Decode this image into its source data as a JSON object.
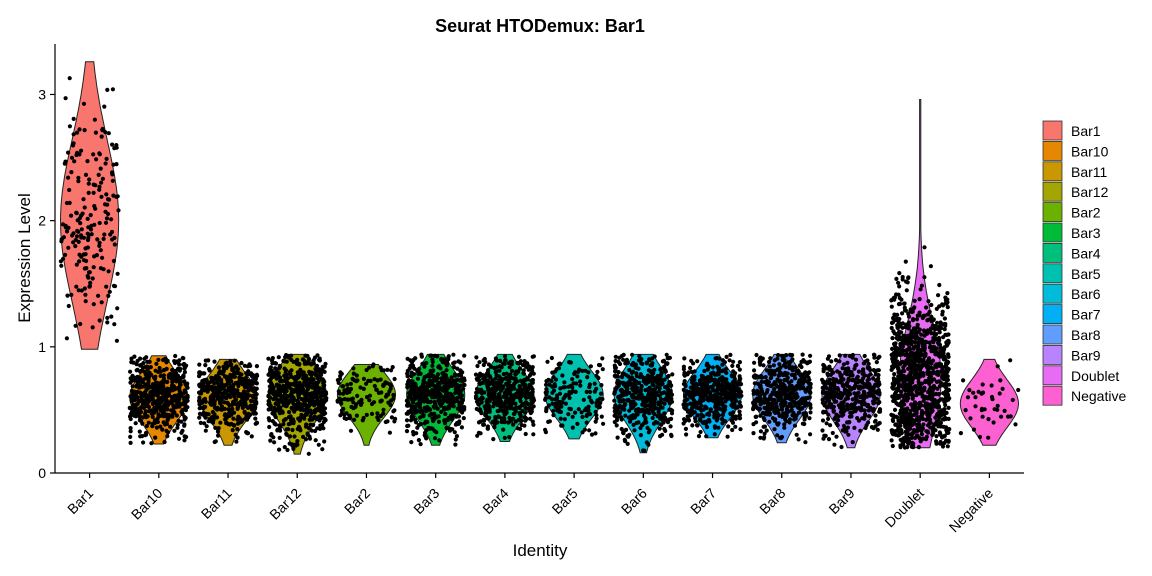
{
  "chart_data": {
    "type": "violin",
    "title": "Seurat HTODemux: Bar1",
    "xlabel": "Identity",
    "ylabel": "Expression Level",
    "ylim": [
      0,
      3.4
    ],
    "y_ticks": [
      0,
      1,
      2,
      3
    ],
    "legend_placement": "right",
    "grid": false,
    "categories": [
      "Bar1",
      "Bar10",
      "Bar11",
      "Bar12",
      "Bar2",
      "Bar3",
      "Bar4",
      "Bar5",
      "Bar6",
      "Bar7",
      "Bar8",
      "Bar9",
      "Doublet",
      "Negative"
    ],
    "colors": [
      "#F8766D",
      "#E58700",
      "#C99800",
      "#A3A500",
      "#6BB100",
      "#00BA38",
      "#00BF7D",
      "#00C0AF",
      "#00BCD8",
      "#00B0F6",
      "#619CFF",
      "#B983FF",
      "#E76BF3",
      "#FD61D1"
    ],
    "series": [
      {
        "name": "Bar1",
        "min": 0.98,
        "max": 3.26,
        "median": 1.95,
        "peak": 2.0,
        "n_points": 200
      },
      {
        "name": "Bar10",
        "min": 0.23,
        "max": 0.93,
        "median": 0.6,
        "peak": 0.6,
        "n_points": 500
      },
      {
        "name": "Bar11",
        "min": 0.22,
        "max": 0.9,
        "median": 0.6,
        "peak": 0.6,
        "n_points": 450
      },
      {
        "name": "Bar12",
        "min": 0.15,
        "max": 0.94,
        "median": 0.6,
        "peak": 0.62,
        "n_points": 550
      },
      {
        "name": "Bar2",
        "min": 0.22,
        "max": 0.86,
        "median": 0.6,
        "peak": 0.62,
        "n_points": 130
      },
      {
        "name": "Bar3",
        "min": 0.22,
        "max": 0.94,
        "median": 0.6,
        "peak": 0.62,
        "n_points": 500
      },
      {
        "name": "Bar4",
        "min": 0.25,
        "max": 0.94,
        "median": 0.6,
        "peak": 0.62,
        "n_points": 450
      },
      {
        "name": "Bar5",
        "min": 0.27,
        "max": 0.94,
        "median": 0.6,
        "peak": 0.62,
        "n_points": 160
      },
      {
        "name": "Bar6",
        "min": 0.16,
        "max": 0.94,
        "median": 0.6,
        "peak": 0.62,
        "n_points": 450
      },
      {
        "name": "Bar7",
        "min": 0.28,
        "max": 0.94,
        "median": 0.6,
        "peak": 0.62,
        "n_points": 450
      },
      {
        "name": "Bar8",
        "min": 0.24,
        "max": 0.94,
        "median": 0.6,
        "peak": 0.62,
        "n_points": 450
      },
      {
        "name": "Bar9",
        "min": 0.2,
        "max": 0.94,
        "median": 0.6,
        "peak": 0.62,
        "n_points": 400
      },
      {
        "name": "Doublet",
        "min": 0.2,
        "max": 2.96,
        "median": 0.75,
        "peak": 0.75,
        "n_points": 1000
      },
      {
        "name": "Negative",
        "min": 0.22,
        "max": 0.9,
        "median": 0.55,
        "peak": 0.55,
        "n_points": 40
      }
    ]
  }
}
